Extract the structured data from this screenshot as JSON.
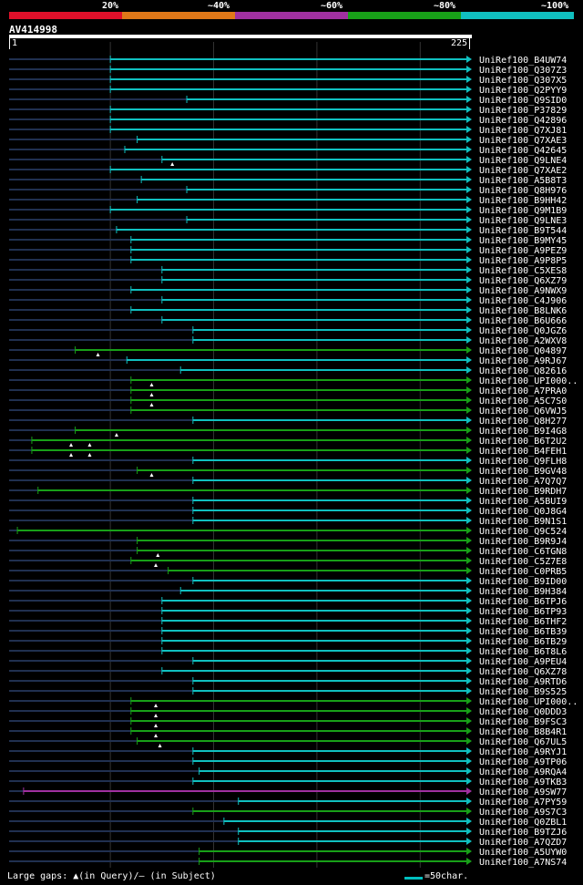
{
  "legend": {
    "labels": [
      "20%",
      "~40%",
      "~60%",
      "~80%",
      "~100%"
    ],
    "colors": [
      "#e0102a",
      "#e07818",
      "#a030a0",
      "#18a018",
      "#10c0c0"
    ]
  },
  "query": {
    "name": "AV414998",
    "start": "1",
    "end": "225"
  },
  "footer": {
    "gaps": "Large gaps: ▲(in Query)/— (in Subject)",
    "scale": "=50char."
  },
  "hits": [
    {
      "name": "UniRef100_B4UW74",
      "start": 50,
      "color": "teal"
    },
    {
      "name": "UniRef100_Q307Z3",
      "start": 50,
      "color": "teal"
    },
    {
      "name": "UniRef100_Q307X5",
      "start": 50,
      "color": "teal"
    },
    {
      "name": "UniRef100_Q2PYY9",
      "start": 50,
      "color": "teal"
    },
    {
      "name": "UniRef100_Q9SID0",
      "start": 87,
      "color": "teal"
    },
    {
      "name": "UniRef100_P37829",
      "start": 50,
      "color": "teal"
    },
    {
      "name": "UniRef100_Q42896",
      "start": 50,
      "color": "teal"
    },
    {
      "name": "UniRef100_Q7XJ81",
      "start": 50,
      "color": "teal"
    },
    {
      "name": "UniRef100_Q7XAE3",
      "start": 63,
      "color": "teal"
    },
    {
      "name": "UniRef100_Q42645",
      "start": 57,
      "color": "teal"
    },
    {
      "name": "UniRef100_Q9LNE4",
      "start": 75,
      "color": "teal",
      "mark": 80
    },
    {
      "name": "UniRef100_Q7XAE2",
      "start": 50,
      "color": "teal"
    },
    {
      "name": "UniRef100_A5B8T3",
      "start": 65,
      "color": "teal"
    },
    {
      "name": "UniRef100_Q8H976",
      "start": 87,
      "color": "teal"
    },
    {
      "name": "UniRef100_B9HH42",
      "start": 63,
      "color": "teal"
    },
    {
      "name": "UniRef100_Q9M1B9",
      "start": 50,
      "color": "teal"
    },
    {
      "name": "UniRef100_Q9LNE3",
      "start": 87,
      "color": "teal"
    },
    {
      "name": "UniRef100_B9T544",
      "start": 53,
      "color": "teal"
    },
    {
      "name": "UniRef100_B9MY45",
      "start": 60,
      "color": "teal"
    },
    {
      "name": "UniRef100_A9PEZ9",
      "start": 60,
      "color": "teal"
    },
    {
      "name": "UniRef100_A9P8P5",
      "start": 60,
      "color": "teal"
    },
    {
      "name": "UniRef100_C5XES8",
      "start": 75,
      "color": "teal"
    },
    {
      "name": "UniRef100_Q6XZ79",
      "start": 75,
      "color": "teal"
    },
    {
      "name": "UniRef100_A9NWX9",
      "start": 60,
      "color": "teal"
    },
    {
      "name": "UniRef100_C4J906",
      "start": 75,
      "color": "teal"
    },
    {
      "name": "UniRef100_B8LNK6",
      "start": 60,
      "color": "teal"
    },
    {
      "name": "UniRef100_B6U666",
      "start": 75,
      "color": "teal"
    },
    {
      "name": "UniRef100_Q0JGZ6",
      "start": 90,
      "color": "teal"
    },
    {
      "name": "UniRef100_A2WXV8",
      "start": 90,
      "color": "teal"
    },
    {
      "name": "UniRef100_Q04897",
      "start": 33,
      "color": "green",
      "mark": 44
    },
    {
      "name": "UniRef100_A9RJ67",
      "start": 58,
      "color": "teal"
    },
    {
      "name": "UniRef100_Q82616",
      "start": 84,
      "color": "teal"
    },
    {
      "name": "UniRef100_UPI000..",
      "start": 60,
      "color": "green",
      "mark": 70
    },
    {
      "name": "UniRef100_A7PRA0",
      "start": 60,
      "color": "green",
      "mark": 70
    },
    {
      "name": "UniRef100_A5C7S0",
      "start": 60,
      "color": "green",
      "mark": 70
    },
    {
      "name": "UniRef100_Q6VWJ5",
      "start": 60,
      "color": "green"
    },
    {
      "name": "UniRef100_Q8H277",
      "start": 90,
      "color": "teal"
    },
    {
      "name": "UniRef100_B9I4G8",
      "start": 33,
      "color": "green",
      "mark": 53
    },
    {
      "name": "UniRef100_B6T2U2",
      "start": 12,
      "color": "green",
      "mark": 31,
      "mark2": 40
    },
    {
      "name": "UniRef100_B4FEH1",
      "start": 12,
      "color": "green",
      "mark": 31,
      "mark2": 40
    },
    {
      "name": "UniRef100_Q9FLH8",
      "start": 90,
      "color": "teal"
    },
    {
      "name": "UniRef100_B9GV48",
      "start": 63,
      "color": "green",
      "mark": 70
    },
    {
      "name": "UniRef100_A7Q7Q7",
      "start": 90,
      "color": "teal"
    },
    {
      "name": "UniRef100_B9RDH7",
      "start": 15,
      "color": "green"
    },
    {
      "name": "UniRef100_A5BUI9",
      "start": 90,
      "color": "teal"
    },
    {
      "name": "UniRef100_Q0J8G4",
      "start": 90,
      "color": "teal"
    },
    {
      "name": "UniRef100_B9N1S1",
      "start": 90,
      "color": "teal"
    },
    {
      "name": "UniRef100_Q9C524",
      "start": 5,
      "color": "green"
    },
    {
      "name": "UniRef100_B9R9J4",
      "start": 63,
      "color": "green"
    },
    {
      "name": "UniRef100_C6TGN8",
      "start": 63,
      "color": "green",
      "mark": 73
    },
    {
      "name": "UniRef100_C5Z7E8",
      "start": 60,
      "color": "green",
      "mark": 72
    },
    {
      "name": "UniRef100_C0PRB5",
      "start": 78,
      "color": "green"
    },
    {
      "name": "UniRef100_B9ID00",
      "start": 90,
      "color": "teal"
    },
    {
      "name": "UniRef100_B9H384",
      "start": 84,
      "color": "teal"
    },
    {
      "name": "UniRef100_B6TPJ6",
      "start": 75,
      "color": "teal"
    },
    {
      "name": "UniRef100_B6TP93",
      "start": 75,
      "color": "teal"
    },
    {
      "name": "UniRef100_B6THF2",
      "start": 75,
      "color": "teal"
    },
    {
      "name": "UniRef100_B6TB39",
      "start": 75,
      "color": "teal"
    },
    {
      "name": "UniRef100_B6TB29",
      "start": 75,
      "color": "teal"
    },
    {
      "name": "UniRef100_B6T8L6",
      "start": 75,
      "color": "teal"
    },
    {
      "name": "UniRef100_A9PEU4",
      "start": 90,
      "color": "teal"
    },
    {
      "name": "UniRef100_Q6XZ78",
      "start": 75,
      "color": "teal"
    },
    {
      "name": "UniRef100_A9RTD6",
      "start": 90,
      "color": "teal"
    },
    {
      "name": "UniRef100_B9S525",
      "start": 90,
      "color": "teal"
    },
    {
      "name": "UniRef100_UPI000..",
      "start": 60,
      "color": "green",
      "mark": 72
    },
    {
      "name": "UniRef100_Q0DDD3",
      "start": 60,
      "color": "green",
      "mark": 72
    },
    {
      "name": "UniRef100_B9FSC3",
      "start": 60,
      "color": "green",
      "mark": 72
    },
    {
      "name": "UniRef100_B8B4R1",
      "start": 60,
      "color": "green",
      "mark": 72
    },
    {
      "name": "UniRef100_Q67UL5",
      "start": 63,
      "color": "green",
      "mark": 74
    },
    {
      "name": "UniRef100_A9RYJ1",
      "start": 90,
      "color": "teal"
    },
    {
      "name": "UniRef100_A9TP06",
      "start": 90,
      "color": "teal"
    },
    {
      "name": "UniRef100_A9RQA4",
      "start": 93,
      "color": "teal"
    },
    {
      "name": "UniRef100_A9TKB3",
      "start": 90,
      "color": "teal"
    },
    {
      "name": "UniRef100_A9SW77",
      "start": 8,
      "color": "purple"
    },
    {
      "name": "UniRef100_A7PY59",
      "start": 112,
      "color": "teal"
    },
    {
      "name": "UniRef100_A9S7C3",
      "start": 90,
      "color": "green"
    },
    {
      "name": "UniRef100_Q0ZBL1",
      "start": 105,
      "color": "teal"
    },
    {
      "name": "UniRef100_B9TZJ6",
      "start": 112,
      "color": "teal"
    },
    {
      "name": "UniRef100_A7QZD7",
      "start": 112,
      "color": "teal"
    },
    {
      "name": "UniRef100_A5UYW0",
      "start": 93,
      "color": "green"
    },
    {
      "name": "UniRef100_A7NS74",
      "start": 93,
      "color": "green"
    }
  ]
}
